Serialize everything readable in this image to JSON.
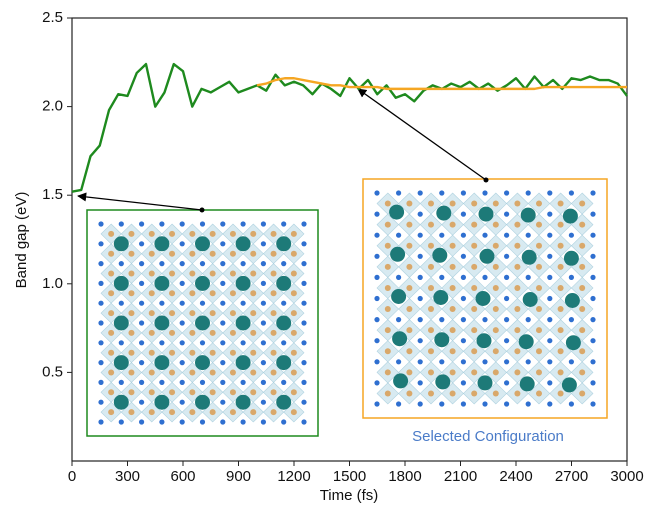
{
  "chart_data": {
    "type": "line",
    "x_label": "Time (fs)",
    "y_label": "Band gap (eV)",
    "annotation": "Selected Configuration",
    "x": [
      0,
      50,
      100,
      150,
      200,
      250,
      300,
      350,
      400,
      450,
      500,
      550,
      600,
      650,
      700,
      750,
      800,
      850,
      900,
      950,
      1000,
      1050,
      1100,
      1150,
      1200,
      1250,
      1300,
      1350,
      1400,
      1450,
      1500,
      1550,
      1600,
      1650,
      1700,
      1750,
      1800,
      1850,
      1900,
      1950,
      2000,
      2050,
      2100,
      2150,
      2200,
      2250,
      2300,
      2350,
      2400,
      2450,
      2500,
      2550,
      2600,
      2650,
      2700,
      2750,
      2800,
      2850,
      2900,
      2950,
      3000
    ],
    "series": [
      {
        "color": "#1e8a1e",
        "values": [
          1.52,
          1.53,
          1.72,
          1.78,
          1.98,
          2.07,
          2.06,
          2.19,
          2.24,
          2.0,
          2.08,
          2.24,
          2.2,
          2.0,
          2.1,
          2.08,
          2.11,
          2.14,
          2.08,
          2.1,
          2.12,
          2.09,
          2.18,
          2.12,
          2.14,
          2.12,
          2.07,
          2.13,
          2.1,
          2.06,
          2.16,
          2.1,
          2.15,
          2.07,
          2.12,
          2.05,
          2.07,
          2.03,
          2.09,
          2.12,
          2.1,
          2.13,
          2.11,
          2.14,
          2.1,
          2.13,
          2.09,
          2.12,
          2.16,
          2.1,
          2.17,
          2.11,
          2.15,
          2.1,
          2.16,
          2.15,
          2.17,
          2.15,
          2.15,
          2.13,
          2.06
        ]
      },
      {
        "color": "#f5a623",
        "values": [
          null,
          null,
          null,
          null,
          null,
          null,
          null,
          null,
          null,
          null,
          null,
          null,
          null,
          null,
          null,
          null,
          null,
          null,
          null,
          null,
          2.12,
          2.13,
          2.15,
          2.16,
          2.16,
          2.15,
          2.14,
          2.13,
          2.12,
          2.12,
          2.11,
          2.11,
          2.11,
          2.11,
          2.1,
          2.1,
          2.1,
          2.1,
          2.1,
          2.1,
          2.1,
          2.1,
          2.1,
          2.1,
          2.1,
          2.1,
          2.1,
          2.1,
          2.1,
          2.1,
          2.1,
          2.11,
          2.11,
          2.11,
          2.11,
          2.11,
          2.11,
          2.11,
          2.11,
          2.11,
          2.11
        ]
      }
    ],
    "xlim": [
      0,
      3000
    ],
    "xticks": [
      0,
      300,
      600,
      900,
      1200,
      1500,
      1800,
      2100,
      2400,
      2700,
      3000
    ],
    "ylim": [
      0,
      2.5
    ],
    "yticks": [
      {
        "value": 0.5,
        "label": "0.5"
      },
      {
        "value": 1,
        "label": "1.0"
      },
      {
        "value": 1.5,
        "label": "1.5"
      },
      {
        "value": 2,
        "label": "2.0"
      },
      {
        "value": 2.5,
        "label": "2.5"
      }
    ],
    "grid": false
  }
}
